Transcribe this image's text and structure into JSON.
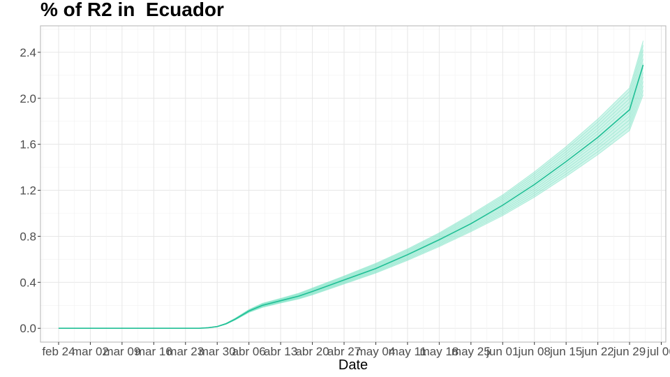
{
  "chart_data": {
    "type": "line",
    "title": "% of R2 in  Ecuador",
    "xlabel": "Date",
    "ylabel": "",
    "x_range": [
      "2020-02-20",
      "2020-07-07"
    ],
    "ylim": [
      -0.12,
      2.63
    ],
    "y_ticks": [
      0.0,
      0.4,
      0.8,
      1.2,
      1.6,
      2.0,
      2.4
    ],
    "y_tick_labels": [
      "0.0",
      "0.4",
      "0.8",
      "1.2",
      "1.6",
      "2.0",
      "2.4"
    ],
    "x_ticks": [
      "2020-02-24",
      "2020-03-02",
      "2020-03-09",
      "2020-03-16",
      "2020-03-23",
      "2020-03-30",
      "2020-04-06",
      "2020-04-13",
      "2020-04-20",
      "2020-04-27",
      "2020-05-04",
      "2020-05-11",
      "2020-05-18",
      "2020-05-25",
      "2020-06-01",
      "2020-06-08",
      "2020-06-15",
      "2020-06-22",
      "2020-06-29",
      "2020-07-06"
    ],
    "x_tick_labels": [
      "feb 24",
      "mar 02",
      "mar 09",
      "mar 16",
      "mar 23",
      "mar 30",
      "abr 06",
      "abr 13",
      "abr 20",
      "abr 27",
      "may 04",
      "may 11",
      "may 18",
      "may 25",
      "jun 01",
      "jun 08",
      "jun 15",
      "jun 22",
      "jun 29",
      "jul 06"
    ],
    "grid": true,
    "legend": "none",
    "color": "#1fbf95",
    "band_color": "#7fe3c6",
    "series": [
      {
        "x": [
          "2020-02-24",
          "2020-03-02",
          "2020-03-09",
          "2020-03-16",
          "2020-03-23",
          "2020-03-26",
          "2020-03-28",
          "2020-03-30",
          "2020-04-01",
          "2020-04-03",
          "2020-04-06",
          "2020-04-09",
          "2020-04-13",
          "2020-04-17",
          "2020-04-20",
          "2020-04-27",
          "2020-05-04",
          "2020-05-11",
          "2020-05-18",
          "2020-05-25",
          "2020-06-01",
          "2020-06-08",
          "2020-06-15",
          "2020-06-22",
          "2020-06-29",
          "2020-07-02"
        ],
        "y": [
          0.0,
          0.0,
          0.0,
          0.0,
          0.0,
          0.0,
          0.005,
          0.015,
          0.04,
          0.08,
          0.15,
          0.2,
          0.24,
          0.28,
          0.32,
          0.42,
          0.52,
          0.64,
          0.77,
          0.91,
          1.07,
          1.25,
          1.45,
          1.66,
          1.9,
          2.29
        ],
        "y_low": [
          0.0,
          0.0,
          0.0,
          0.0,
          0.0,
          0.0,
          0.005,
          0.013,
          0.036,
          0.073,
          0.138,
          0.182,
          0.22,
          0.255,
          0.29,
          0.385,
          0.48,
          0.59,
          0.71,
          0.84,
          0.98,
          1.14,
          1.32,
          1.51,
          1.72,
          2.03
        ],
        "y_high": [
          0.0,
          0.0,
          0.0,
          0.0,
          0.0,
          0.0,
          0.006,
          0.017,
          0.045,
          0.088,
          0.163,
          0.218,
          0.26,
          0.305,
          0.35,
          0.455,
          0.565,
          0.69,
          0.83,
          0.99,
          1.16,
          1.36,
          1.58,
          1.82,
          2.09,
          2.5
        ]
      }
    ]
  }
}
